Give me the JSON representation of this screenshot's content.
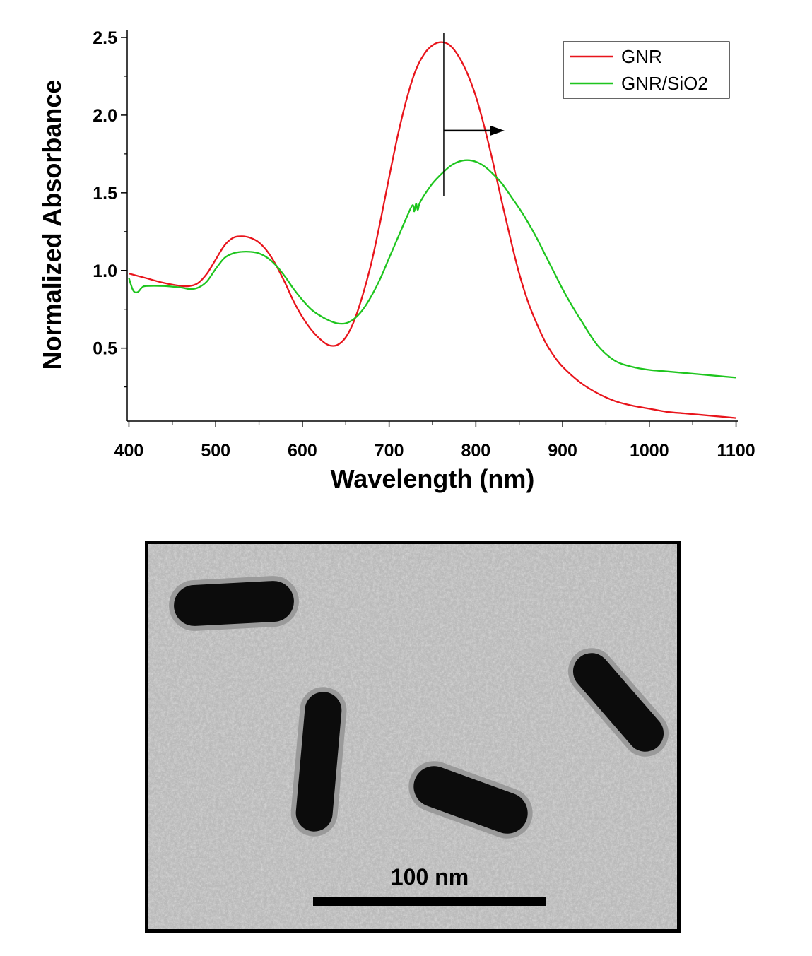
{
  "chart_data": {
    "type": "line",
    "title": "",
    "xlabel": "Wavelength (nm)",
    "ylabel": "Normalized Absorbance",
    "xlim": [
      398,
      1102
    ],
    "ylim": [
      0.03,
      2.55
    ],
    "xticks": [
      400,
      500,
      600,
      700,
      800,
      900,
      1000,
      1100
    ],
    "yticks": [
      0.5,
      1.0,
      1.5,
      2.0,
      2.5
    ],
    "ytick_labels": [
      "0.5",
      "1.0",
      "1.5",
      "2.0",
      "2.5"
    ],
    "grid": false,
    "legend_position": "top-right",
    "series": [
      {
        "name": "GNR",
        "color": "#e8141b",
        "x": [
          400,
          420,
          440,
          460,
          470,
          480,
          490,
          500,
          510,
          520,
          530,
          540,
          550,
          560,
          570,
          580,
          590,
          600,
          610,
          620,
          630,
          640,
          650,
          660,
          670,
          680,
          690,
          700,
          710,
          720,
          730,
          740,
          750,
          760,
          770,
          780,
          790,
          800,
          810,
          820,
          830,
          840,
          850,
          860,
          870,
          880,
          890,
          900,
          920,
          940,
          960,
          980,
          1000,
          1020,
          1040,
          1060,
          1080,
          1100
        ],
        "y": [
          0.98,
          0.95,
          0.92,
          0.9,
          0.9,
          0.92,
          0.98,
          1.07,
          1.16,
          1.21,
          1.22,
          1.21,
          1.18,
          1.12,
          1.03,
          0.92,
          0.8,
          0.7,
          0.62,
          0.56,
          0.52,
          0.52,
          0.57,
          0.68,
          0.85,
          1.06,
          1.32,
          1.6,
          1.87,
          2.1,
          2.28,
          2.39,
          2.45,
          2.47,
          2.45,
          2.38,
          2.27,
          2.12,
          1.92,
          1.69,
          1.44,
          1.2,
          0.98,
          0.8,
          0.66,
          0.54,
          0.45,
          0.38,
          0.28,
          0.21,
          0.16,
          0.13,
          0.11,
          0.09,
          0.08,
          0.07,
          0.06,
          0.05
        ]
      },
      {
        "name": "GNR/SiO2",
        "color": "#1ec51e",
        "x": [
          400,
          405,
          410,
          415,
          420,
          440,
          460,
          470,
          480,
          490,
          500,
          510,
          520,
          530,
          540,
          550,
          560,
          570,
          580,
          590,
          600,
          610,
          620,
          630,
          640,
          650,
          660,
          670,
          680,
          690,
          700,
          710,
          720,
          727,
          729,
          731,
          733,
          735,
          740,
          750,
          760,
          770,
          780,
          790,
          800,
          810,
          820,
          830,
          840,
          850,
          860,
          870,
          880,
          890,
          900,
          910,
          920,
          940,
          960,
          980,
          1000,
          1020,
          1040,
          1060,
          1080,
          1100
        ],
        "y": [
          0.95,
          0.87,
          0.86,
          0.89,
          0.9,
          0.9,
          0.89,
          0.88,
          0.89,
          0.93,
          1.01,
          1.08,
          1.11,
          1.12,
          1.12,
          1.11,
          1.08,
          1.03,
          0.96,
          0.88,
          0.81,
          0.75,
          0.71,
          0.68,
          0.66,
          0.66,
          0.69,
          0.75,
          0.84,
          0.95,
          1.08,
          1.21,
          1.34,
          1.42,
          1.38,
          1.43,
          1.39,
          1.43,
          1.48,
          1.56,
          1.62,
          1.67,
          1.7,
          1.71,
          1.7,
          1.67,
          1.62,
          1.56,
          1.48,
          1.4,
          1.31,
          1.21,
          1.1,
          0.99,
          0.88,
          0.78,
          0.69,
          0.52,
          0.42,
          0.38,
          0.36,
          0.35,
          0.34,
          0.33,
          0.32,
          0.31
        ]
      }
    ],
    "annotations": {
      "marker_line": {
        "x": 763,
        "y_from": 1.48,
        "y_to": 2.53
      },
      "arrow": {
        "x_from": 763,
        "x_to": 833,
        "y": 1.9
      }
    }
  },
  "tem_image": {
    "scale_bar_label": "100 nm",
    "background_color": "#b9b9b9",
    "rod_color": "#0c0c0c",
    "shell_color": "#9a9a9a"
  }
}
